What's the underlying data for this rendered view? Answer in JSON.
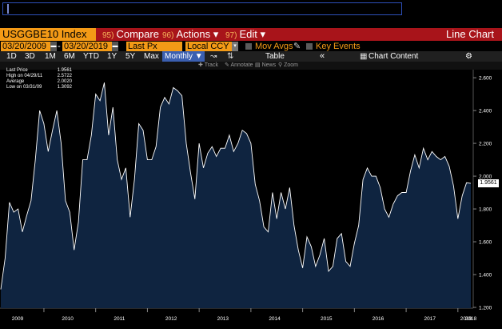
{
  "ticker": "USGGBE10 Index",
  "toolbar": {
    "compare": {
      "num": "95)",
      "label": "Compare"
    },
    "actions": {
      "num": "96)",
      "label": "Actions ▾"
    },
    "edit": {
      "num": "97)",
      "label": "Edit ▾"
    },
    "chart_type": "Line Chart"
  },
  "params": {
    "start_date": "03/20/2009",
    "end_date": "03/20/2019",
    "field": "Last Px",
    "currency": "Local CCY",
    "mov_avgs": "Mov Avgs",
    "key_events": "Key Events"
  },
  "ranges": {
    "items": [
      "1D",
      "3D",
      "1M",
      "6M",
      "YTD",
      "1Y",
      "5Y",
      "Max"
    ],
    "frequency": "Monthly ▼",
    "table": "Table",
    "chart_content": "Chart Content"
  },
  "annotations": {
    "track": "Track",
    "annotate": "Annotate",
    "news": "News",
    "zoom": "Zoom"
  },
  "legend": [
    {
      "label": "Last Price",
      "value": "1.9561"
    },
    {
      "label": "High on 04/29/11",
      "value": "2.5722"
    },
    {
      "label": "Average",
      "value": "2.0020"
    },
    {
      "label": "Low on 03/31/09",
      "value": "1.3092"
    }
  ],
  "last_value_box": "1.9561",
  "colors": {
    "accent": "#f39a16",
    "title_bar": "#a8141a",
    "area_fill": "#0f2440",
    "line": "#ffffff"
  },
  "chart_data": {
    "type": "area",
    "x_start": "2009-03",
    "frequency": "monthly",
    "x_tick_labels": [
      "2009",
      "2010",
      "2011",
      "2012",
      "2013",
      "2014",
      "2015",
      "2016",
      "2017",
      "2018",
      "2019"
    ],
    "y_tick_labels": [
      "1.200",
      "1.400",
      "1.600",
      "1.800",
      "2.000",
      "2.200",
      "2.400",
      "2.600"
    ],
    "ylim": [
      1.2,
      2.62
    ],
    "values": [
      1.31,
      1.5,
      1.84,
      1.78,
      1.8,
      1.66,
      1.76,
      1.85,
      2.1,
      2.4,
      2.32,
      2.15,
      2.28,
      2.4,
      2.2,
      1.85,
      1.78,
      1.55,
      1.72,
      2.1,
      2.1,
      2.25,
      2.5,
      2.46,
      2.57,
      2.25,
      2.42,
      2.1,
      1.98,
      2.05,
      1.75,
      1.98,
      2.32,
      2.28,
      2.1,
      2.1,
      2.18,
      2.42,
      2.48,
      2.44,
      2.54,
      2.52,
      2.49,
      2.2,
      2.02,
      1.86,
      2.2,
      2.05,
      2.14,
      2.18,
      2.12,
      2.17,
      2.17,
      2.25,
      2.15,
      2.2,
      2.28,
      2.26,
      2.2,
      1.95,
      1.85,
      1.69,
      1.66,
      1.9,
      1.74,
      1.9,
      1.8,
      1.93,
      1.7,
      1.55,
      1.44,
      1.63,
      1.57,
      1.45,
      1.52,
      1.62,
      1.42,
      1.45,
      1.62,
      1.65,
      1.48,
      1.45,
      1.59,
      1.7,
      1.98,
      2.05,
      2,
      2.0,
      1.93,
      1.8,
      1.75,
      1.83,
      1.88,
      1.9,
      1.9,
      2.03,
      2.13,
      2.05,
      2.17,
      2.1,
      2.15,
      2.12,
      2.1,
      2.12,
      2.06,
      1.94,
      1.74,
      1.88,
      1.96,
      1.9561
    ]
  }
}
